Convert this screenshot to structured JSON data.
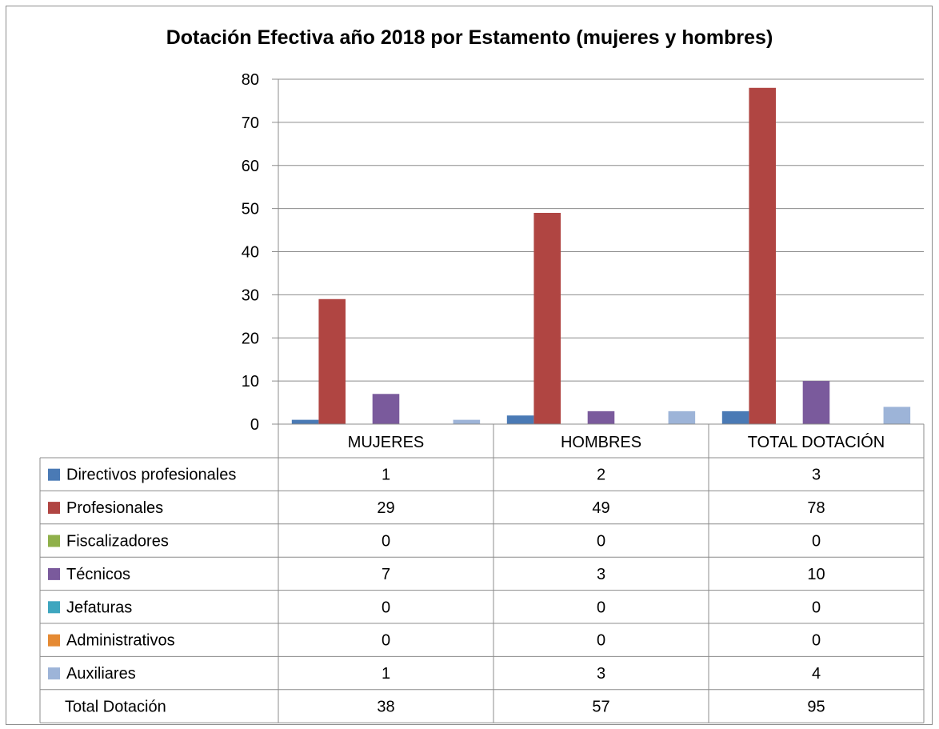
{
  "chart_data": {
    "type": "bar",
    "title": "Dotación Efectiva año 2018 por Estamento (mujeres y hombres)",
    "categories": [
      "MUJERES",
      "HOMBRES",
      "TOTAL DOTACIÓN"
    ],
    "ylim": [
      0,
      80
    ],
    "yticks": [
      "0",
      "10",
      "20",
      "30",
      "40",
      "50",
      "60",
      "70",
      "80"
    ],
    "grid": true,
    "legend": "table",
    "series": [
      {
        "name": "Directivos profesionales",
        "color": "#4a7ab5",
        "values": [
          1,
          2,
          3
        ]
      },
      {
        "name": "Profesionales",
        "color": "#b04542",
        "values": [
          29,
          49,
          78
        ]
      },
      {
        "name": "Fiscalizadores",
        "color": "#8fb04a",
        "values": [
          0,
          0,
          0
        ]
      },
      {
        "name": "Técnicos",
        "color": "#7a5a9c",
        "values": [
          7,
          3,
          10
        ]
      },
      {
        "name": "Jefaturas",
        "color": "#3ea6bf",
        "values": [
          0,
          0,
          0
        ]
      },
      {
        "name": "Administrativos",
        "color": "#e58a33",
        "values": [
          0,
          0,
          0
        ]
      },
      {
        "name": "Auxiliares",
        "color": "#9db4d8",
        "values": [
          1,
          3,
          4
        ]
      }
    ],
    "totals": {
      "label": "Total Dotación",
      "values": [
        38,
        57,
        95
      ]
    }
  }
}
